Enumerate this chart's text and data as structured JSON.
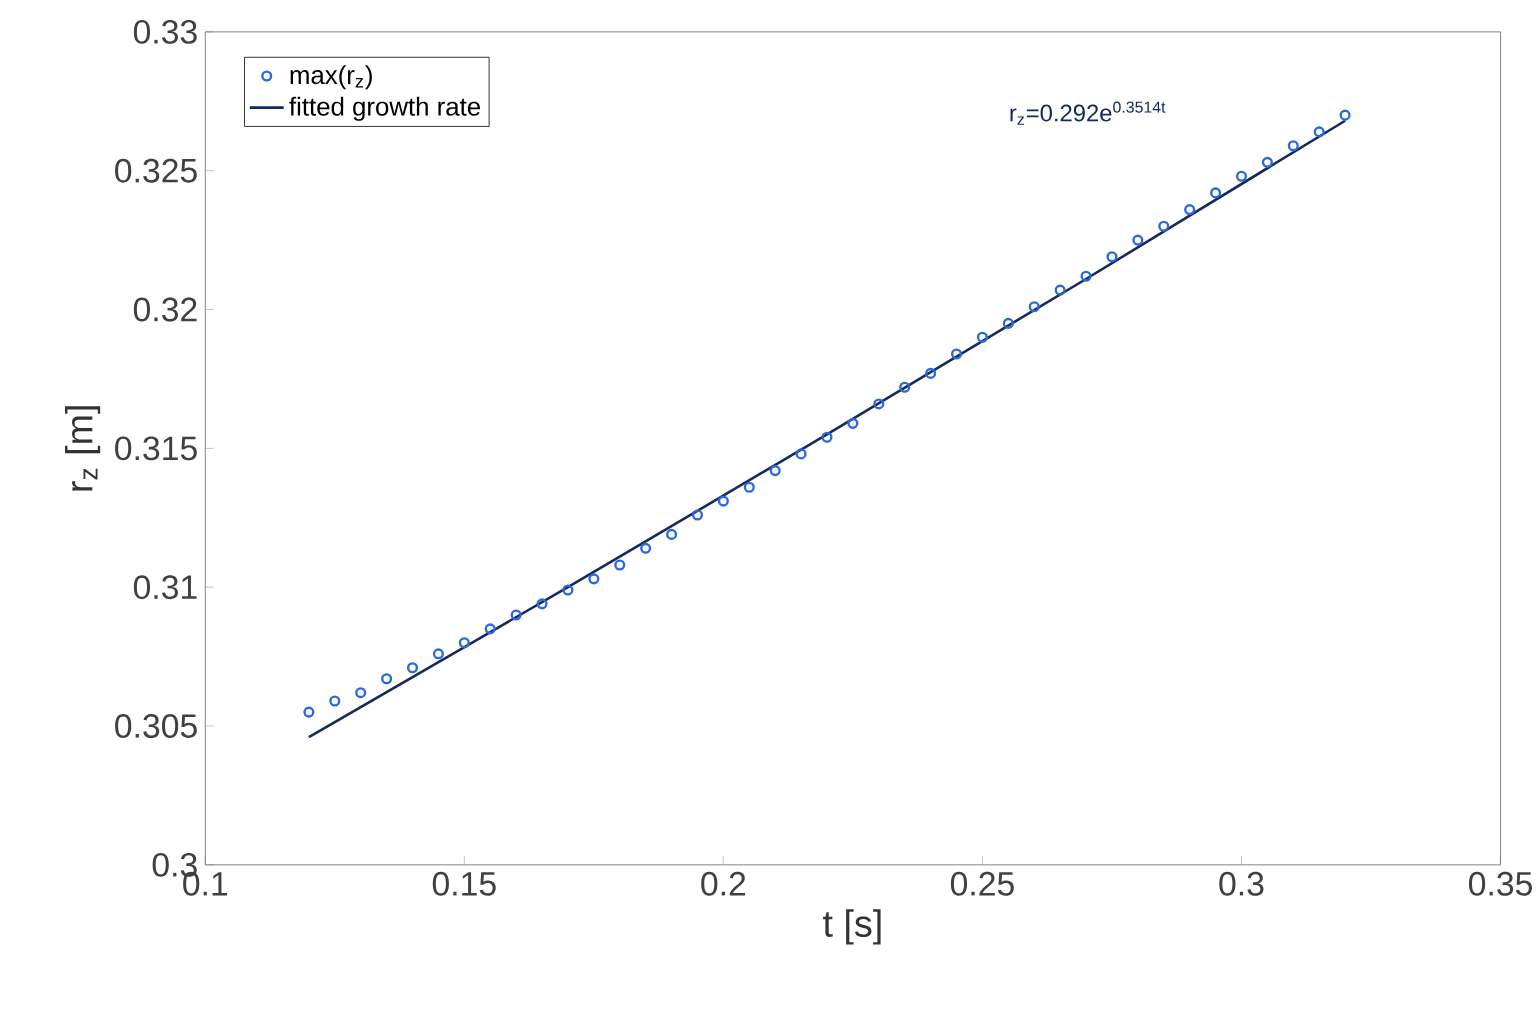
{
  "chart_data": {
    "type": "scatter",
    "xlabel": "t [s]",
    "ylabel": "r$_{z}$ [m]",
    "xlim": [
      0.1,
      0.35
    ],
    "ylim": [
      0.3,
      0.33
    ],
    "xticks": [
      0.1,
      0.15,
      0.2,
      0.25,
      0.3,
      0.35
    ],
    "yticks": [
      0.3,
      0.305,
      0.31,
      0.315,
      0.32,
      0.325,
      0.33
    ],
    "grid": false,
    "legend": "top left",
    "annotations": [
      "r$_{z}$=0.292e$^{0.3514t}$"
    ],
    "series": [
      {
        "name": "max(r$_{z}$)",
        "marker": "circle",
        "color": "#2a6ad6",
        "x": [
          0.12,
          0.125,
          0.13,
          0.135,
          0.14,
          0.145,
          0.15,
          0.155,
          0.16,
          0.165,
          0.17,
          0.175,
          0.18,
          0.185,
          0.19,
          0.195,
          0.2,
          0.205,
          0.21,
          0.215,
          0.22,
          0.225,
          0.23,
          0.235,
          0.24,
          0.245,
          0.25,
          0.255,
          0.26,
          0.265,
          0.27,
          0.275,
          0.28,
          0.285,
          0.29,
          0.295,
          0.3,
          0.305,
          0.31,
          0.315,
          0.32
        ],
        "values": [
          0.3055,
          0.3059,
          0.3062,
          0.3067,
          0.3071,
          0.3076,
          0.308,
          0.3085,
          0.309,
          0.3094,
          0.3099,
          0.3103,
          0.3108,
          0.3114,
          0.3119,
          0.3126,
          0.3131,
          0.3136,
          0.3142,
          0.3148,
          0.3154,
          0.3159,
          0.3166,
          0.3172,
          0.3177,
          0.3184,
          0.319,
          0.3195,
          0.3201,
          0.3207,
          0.3212,
          0.3219,
          0.3225,
          0.323,
          0.3236,
          0.3242,
          0.3248,
          0.3253,
          0.3259,
          0.3264,
          0.327
        ]
      },
      {
        "name": "fitted growth rate",
        "type": "line",
        "marker": "none",
        "color": "#15295c",
        "x": [
          0.12,
          0.17,
          0.22,
          0.27,
          0.32
        ],
        "values": [
          0.3046,
          0.31,
          0.3155,
          0.3211,
          0.3268
        ]
      }
    ]
  }
}
